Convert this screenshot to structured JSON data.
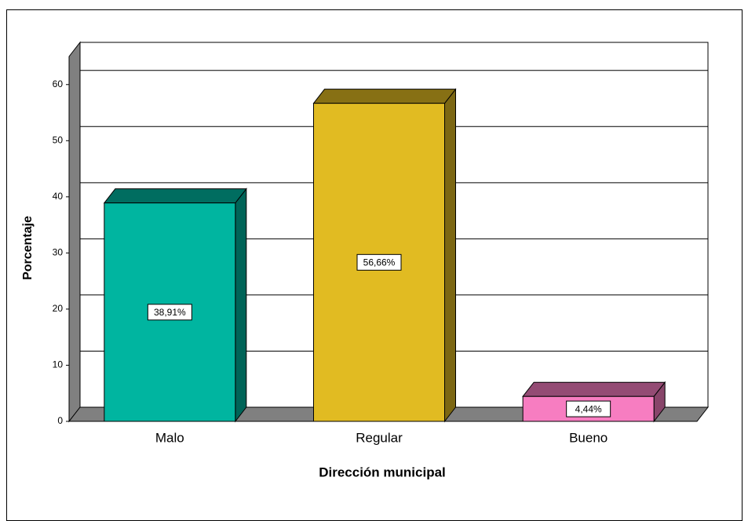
{
  "chart_data": {
    "type": "bar3d",
    "x_label": "Dirección municipal",
    "y_label": "Porcentaje",
    "categories": [
      "Malo",
      "Regular",
      "Bueno"
    ],
    "values": [
      38.91,
      56.66,
      4.44
    ],
    "value_labels": [
      "38,91%",
      "56,66%",
      "4,44%"
    ],
    "colors": [
      "#00b5a0",
      "#e1bb22",
      "#f77dc1"
    ],
    "ylim": [
      0,
      65
    ],
    "yticks": [
      0,
      10,
      20,
      30,
      40,
      50,
      60
    ],
    "grid": true
  }
}
